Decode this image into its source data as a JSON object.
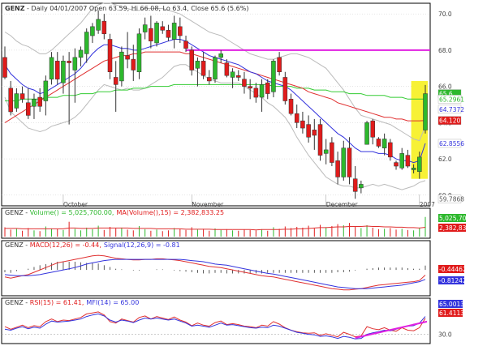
{
  "colors": {
    "up": "#2db82d",
    "down": "#e01b1b",
    "ma_blue": "#3333dd",
    "ma_red": "#e03030",
    "ma_green": "#33cc33",
    "bollinger": "#bbbbbb",
    "resistance": "#e020e0",
    "highlight": "#f7f02a",
    "frame": "#000000",
    "grid": "#cccccc"
  },
  "header": {
    "symbol": "GENZ",
    "title": "- Daily 04/01/2007 Open 63.59, Hi 66.08, Lo 63.4, Close 65.6 (5.6%)"
  },
  "price_panel": {
    "ylim": [
      59.5,
      70.5
    ],
    "ticks": [
      "70.0",
      "68.0",
      "66.0",
      "64.0",
      "62.0",
      "60.0"
    ],
    "x_labels": [
      "October",
      "November",
      "December",
      "2007"
    ],
    "badges": [
      {
        "text": "65.6",
        "value": 65.6,
        "bg": "#2db82d",
        "fg": "#ffffff"
      },
      {
        "text": "65.2961",
        "value": 65.2961,
        "bg": "#ffffff",
        "fg": "#2db82d"
      },
      {
        "text": "64.7372",
        "value": 64.7372,
        "bg": "#ffffff",
        "fg": "#3333dd"
      },
      {
        "text": "64.1207",
        "value": 64.1207,
        "bg": "#e01b1b",
        "fg": "#ffffff"
      },
      {
        "text": "62.8556",
        "value": 62.8556,
        "bg": "#ffffff",
        "fg": "#3333dd"
      },
      {
        "text": "59.7868",
        "value": 59.7868,
        "bg": "#ffffff",
        "fg": "#555555"
      }
    ],
    "resistance_level": 68.0
  },
  "volume_panel": {
    "label_prefix": "GENZ - ",
    "label_vol": "Volume() = 5,025,700.00,",
    "label_ma": "MA(Volume(),15) = 2,382,833.25",
    "badges": [
      {
        "text": "5,025,700",
        "bg": "#2db82d",
        "fg": "#ffffff"
      },
      {
        "text": "2,382,833",
        "bg": "#e01b1b",
        "fg": "#ffffff"
      }
    ]
  },
  "macd_panel": {
    "label_prefix": "GENZ - ",
    "label_macd": "MACD(12,26) = -0.44,",
    "label_signal": "Signal(12,26,9) = -0.81",
    "badges": [
      {
        "text": "-0.44462",
        "bg": "#e01b1b",
        "fg": "#ffffff"
      },
      {
        "text": "-0.81242",
        "bg": "#3333dd",
        "fg": "#ffffff"
      }
    ]
  },
  "rsi_panel": {
    "label_prefix": "GENZ - ",
    "label_rsi": "RSI(15) = 61.41,",
    "label_mfi": "MFI(14) = 65.00",
    "ticks": [
      "30.0"
    ],
    "badges": [
      {
        "text": "65.0013",
        "bg": "#3333dd",
        "fg": "#ffffff"
      },
      {
        "text": "61.4113",
        "bg": "#e01b1b",
        "fg": "#ffffff"
      }
    ]
  },
  "chart_data": {
    "type": "candlestick",
    "symbol": "GENZ",
    "title": "GENZ - Daily 04/01/2007 Open 63.59, Hi 66.08, Lo 63.4, Close 65.6 (5.6%)",
    "x_axis_labels": [
      "October",
      "November",
      "December",
      "2007"
    ],
    "ylim": [
      59.5,
      70.5
    ],
    "resistance": 68.0,
    "candles": [
      {
        "o": 67.6,
        "h": 68.2,
        "l": 66.4,
        "c": 66.5
      },
      {
        "o": 65.9,
        "h": 66.3,
        "l": 64.4,
        "c": 64.6
      },
      {
        "o": 64.8,
        "h": 65.9,
        "l": 64.6,
        "c": 65.6
      },
      {
        "o": 65.6,
        "h": 66.0,
        "l": 65.1,
        "c": 65.3
      },
      {
        "o": 65.1,
        "h": 65.9,
        "l": 64.2,
        "c": 64.4
      },
      {
        "o": 64.9,
        "h": 65.6,
        "l": 64.2,
        "c": 65.3
      },
      {
        "o": 65.4,
        "h": 65.9,
        "l": 64.6,
        "c": 64.9
      },
      {
        "o": 65.2,
        "h": 66.6,
        "l": 64.4,
        "c": 66.3
      },
      {
        "o": 66.4,
        "h": 67.9,
        "l": 66.1,
        "c": 67.6
      },
      {
        "o": 67.4,
        "h": 67.9,
        "l": 66.1,
        "c": 66.4
      },
      {
        "o": 66.2,
        "h": 67.7,
        "l": 65.6,
        "c": 67.4
      },
      {
        "o": 67.4,
        "h": 67.9,
        "l": 63.9,
        "c": 67.3
      },
      {
        "o": 66.9,
        "h": 68.1,
        "l": 65.1,
        "c": 67.6
      },
      {
        "o": 67.6,
        "h": 68.2,
        "l": 67.1,
        "c": 68.0
      },
      {
        "o": 67.8,
        "h": 69.2,
        "l": 67.3,
        "c": 69.0
      },
      {
        "o": 68.8,
        "h": 69.5,
        "l": 68.4,
        "c": 69.3
      },
      {
        "o": 69.1,
        "h": 70.2,
        "l": 68.9,
        "c": 69.7
      },
      {
        "o": 69.6,
        "h": 70.0,
        "l": 68.6,
        "c": 68.9
      },
      {
        "o": 68.6,
        "h": 68.9,
        "l": 66.4,
        "c": 66.8
      },
      {
        "o": 66.5,
        "h": 67.4,
        "l": 64.6,
        "c": 66.1
      },
      {
        "o": 66.3,
        "h": 68.2,
        "l": 66.0,
        "c": 67.9
      },
      {
        "o": 67.7,
        "h": 69.0,
        "l": 67.0,
        "c": 67.5
      },
      {
        "o": 67.5,
        "h": 68.3,
        "l": 66.3,
        "c": 66.9
      },
      {
        "o": 66.8,
        "h": 69.2,
        "l": 66.4,
        "c": 68.9
      },
      {
        "o": 69.0,
        "h": 69.8,
        "l": 68.6,
        "c": 69.4
      },
      {
        "o": 69.2,
        "h": 69.9,
        "l": 68.1,
        "c": 68.5
      },
      {
        "o": 68.4,
        "h": 69.6,
        "l": 68.2,
        "c": 69.5
      },
      {
        "o": 69.3,
        "h": 69.6,
        "l": 68.9,
        "c": 69.1
      },
      {
        "o": 69.1,
        "h": 69.4,
        "l": 68.5,
        "c": 68.7
      },
      {
        "o": 68.6,
        "h": 69.9,
        "l": 68.1,
        "c": 69.5
      },
      {
        "o": 69.3,
        "h": 69.8,
        "l": 68.4,
        "c": 68.8
      },
      {
        "o": 68.5,
        "h": 68.8,
        "l": 67.9,
        "c": 68.1
      },
      {
        "o": 68.0,
        "h": 68.2,
        "l": 66.6,
        "c": 66.9
      },
      {
        "o": 67.0,
        "h": 67.6,
        "l": 66.0,
        "c": 67.4
      },
      {
        "o": 67.4,
        "h": 67.9,
        "l": 66.4,
        "c": 66.6
      },
      {
        "o": 66.5,
        "h": 66.9,
        "l": 66.1,
        "c": 66.3
      },
      {
        "o": 66.4,
        "h": 67.7,
        "l": 66.2,
        "c": 67.6
      },
      {
        "o": 67.6,
        "h": 68.0,
        "l": 67.3,
        "c": 67.8
      },
      {
        "o": 67.3,
        "h": 67.5,
        "l": 66.5,
        "c": 66.6
      },
      {
        "o": 66.5,
        "h": 67.0,
        "l": 65.9,
        "c": 66.8
      },
      {
        "o": 66.6,
        "h": 66.9,
        "l": 66.3,
        "c": 66.5
      },
      {
        "o": 66.4,
        "h": 66.8,
        "l": 65.6,
        "c": 66.0
      },
      {
        "o": 66.0,
        "h": 66.4,
        "l": 65.3,
        "c": 65.9
      },
      {
        "o": 65.9,
        "h": 66.2,
        "l": 65.1,
        "c": 65.4
      },
      {
        "o": 65.4,
        "h": 66.4,
        "l": 64.6,
        "c": 66.1
      },
      {
        "o": 66.2,
        "h": 66.4,
        "l": 65.3,
        "c": 65.6
      },
      {
        "o": 65.7,
        "h": 67.5,
        "l": 65.4,
        "c": 67.4
      },
      {
        "o": 67.6,
        "h": 67.9,
        "l": 66.6,
        "c": 66.8
      },
      {
        "o": 66.5,
        "h": 66.8,
        "l": 65.0,
        "c": 65.2
      },
      {
        "o": 65.3,
        "h": 65.6,
        "l": 64.4,
        "c": 64.5
      },
      {
        "o": 64.5,
        "h": 65.0,
        "l": 63.7,
        "c": 64.0
      },
      {
        "o": 64.1,
        "h": 64.6,
        "l": 63.4,
        "c": 63.7
      },
      {
        "o": 63.9,
        "h": 64.4,
        "l": 62.9,
        "c": 63.2
      },
      {
        "o": 63.6,
        "h": 64.2,
        "l": 62.5,
        "c": 63.3
      },
      {
        "o": 63.9,
        "h": 64.2,
        "l": 61.9,
        "c": 62.2
      },
      {
        "o": 62.3,
        "h": 63.1,
        "l": 61.7,
        "c": 62.5
      },
      {
        "o": 62.9,
        "h": 63.2,
        "l": 61.6,
        "c": 61.8
      },
      {
        "o": 61.9,
        "h": 62.4,
        "l": 60.6,
        "c": 61.0
      },
      {
        "o": 61.0,
        "h": 63.0,
        "l": 60.8,
        "c": 62.6
      },
      {
        "o": 62.6,
        "h": 63.2,
        "l": 60.6,
        "c": 61.0
      },
      {
        "o": 60.9,
        "h": 61.6,
        "l": 59.8,
        "c": 60.2
      },
      {
        "o": 60.4,
        "h": 60.8,
        "l": 60.1,
        "c": 60.6
      },
      {
        "o": 62.8,
        "h": 64.1,
        "l": 62.8,
        "c": 64.0
      },
      {
        "o": 64.1,
        "h": 64.2,
        "l": 62.8,
        "c": 63.2
      },
      {
        "o": 63.1,
        "h": 63.2,
        "l": 62.6,
        "c": 62.7
      },
      {
        "o": 62.6,
        "h": 63.4,
        "l": 62.2,
        "c": 63.1
      },
      {
        "o": 62.9,
        "h": 63.1,
        "l": 61.9,
        "c": 62.1
      },
      {
        "o": 61.8,
        "h": 61.9,
        "l": 61.4,
        "c": 61.6
      },
      {
        "o": 61.5,
        "h": 62.6,
        "l": 61.4,
        "c": 62.3
      },
      {
        "o": 62.2,
        "h": 62.5,
        "l": 61.5,
        "c": 61.6
      },
      {
        "o": 61.4,
        "h": 61.7,
        "l": 61.2,
        "c": 61.5
      },
      {
        "o": 61.3,
        "h": 62.4,
        "l": 60.9,
        "c": 62.1
      },
      {
        "o": 63.59,
        "h": 66.08,
        "l": 63.4,
        "c": 65.6
      }
    ],
    "ma_blue": [
      67.2,
      66.7,
      66.4,
      66.1,
      65.9,
      65.8,
      65.6,
      65.7,
      65.9,
      66.1,
      66.3,
      66.5,
      66.7,
      67.0,
      67.4,
      67.8,
      68.1,
      68.3,
      68.3,
      68.2,
      68.1,
      68.1,
      68.0,
      68.0,
      68.1,
      68.2,
      68.3,
      68.4,
      68.5,
      68.6,
      68.6,
      68.5,
      68.3,
      68.1,
      67.9,
      67.7,
      67.6,
      67.5,
      67.4,
      67.3,
      67.2,
      67.0,
      66.8,
      66.7,
      66.5,
      66.3,
      66.2,
      66.1,
      66.0,
      65.8,
      65.5,
      65.2,
      64.9,
      64.6,
      64.3,
      64.0,
      63.7,
      63.4,
      63.2,
      62.9,
      62.6,
      62.4,
      62.4,
      62.4,
      62.3,
      62.3,
      62.2,
      62.0,
      61.9,
      61.9,
      61.8,
      61.9,
      62.86
    ],
    "ma_red": [
      64.0,
      64.2,
      64.4,
      64.6,
      64.8,
      65.0,
      65.2,
      65.4,
      65.6,
      65.8,
      66.0,
      66.2,
      66.4,
      66.6,
      66.8,
      67.0,
      67.2,
      67.4,
      67.5,
      67.6,
      67.7,
      67.7,
      67.8,
      67.8,
      67.9,
      67.9,
      67.9,
      67.9,
      67.9,
      67.9,
      67.9,
      67.8,
      67.8,
      67.7,
      67.6,
      67.5,
      67.4,
      67.3,
      67.2,
      67.1,
      67.0,
      66.9,
      66.8,
      66.7,
      66.6,
      66.5,
      66.4,
      66.3,
      66.2,
      66.1,
      66.0,
      65.9,
      65.7,
      65.6,
      65.5,
      65.4,
      65.3,
      65.1,
      65.0,
      64.9,
      64.8,
      64.7,
      64.6,
      64.5,
      64.4,
      64.3,
      64.3,
      64.2,
      64.2,
      64.1,
      64.1,
      64.1,
      64.12
    ],
    "ma_green": [
      65.2,
      65.2,
      65.2,
      65.3,
      65.3,
      65.3,
      65.3,
      65.4,
      65.4,
      65.4,
      65.5,
      65.5,
      65.5,
      65.6,
      65.6,
      65.6,
      65.7,
      65.7,
      65.7,
      65.8,
      65.8,
      65.8,
      65.9,
      65.9,
      65.9,
      66.0,
      66.0,
      66.0,
      66.0,
      66.1,
      66.1,
      66.1,
      66.1,
      66.1,
      66.1,
      66.1,
      66.1,
      66.1,
      66.1,
      66.1,
      66.1,
      66.1,
      66.1,
      66.1,
      66.1,
      66.1,
      66.0,
      66.0,
      66.0,
      66.0,
      65.9,
      65.9,
      65.9,
      65.8,
      65.8,
      65.8,
      65.7,
      65.7,
      65.7,
      65.6,
      65.6,
      65.6,
      65.5,
      65.5,
      65.5,
      65.5,
      65.4,
      65.4,
      65.4,
      65.3,
      65.3,
      65.3,
      65.3
    ],
    "boll_upper": [
      69.0,
      68.8,
      68.5,
      68.3,
      68.2,
      68.0,
      67.8,
      67.8,
      68.0,
      68.3,
      68.6,
      68.9,
      69.2,
      69.5,
      69.9,
      70.3,
      70.5,
      70.6,
      70.6,
      70.5,
      70.4,
      70.3,
      70.2,
      70.2,
      70.3,
      70.3,
      70.3,
      70.3,
      70.2,
      70.1,
      70.0,
      69.8,
      69.6,
      69.4,
      69.2,
      69.0,
      68.9,
      68.8,
      68.6,
      68.4,
      68.2,
      68.0,
      67.8,
      67.7,
      67.6,
      67.5,
      67.5,
      67.6,
      67.7,
      67.8,
      67.8,
      67.7,
      67.6,
      67.4,
      67.2,
      67.0,
      66.6,
      66.2,
      65.8,
      65.3,
      64.8,
      64.4,
      64.3,
      64.2,
      64.1,
      64.0,
      63.9,
      63.7,
      63.5,
      63.3,
      63.1,
      63.0,
      63.8
    ],
    "boll_lower": [
      65.4,
      64.6,
      64.3,
      64.0,
      63.7,
      63.6,
      63.5,
      63.6,
      63.8,
      63.9,
      64.0,
      64.1,
      64.3,
      64.6,
      65.0,
      65.4,
      65.8,
      66.1,
      66.0,
      65.9,
      65.8,
      65.9,
      65.8,
      65.8,
      65.9,
      66.1,
      66.3,
      66.5,
      66.8,
      67.1,
      67.2,
      67.2,
      67.0,
      66.8,
      66.6,
      66.4,
      66.3,
      66.2,
      66.2,
      66.2,
      66.2,
      66.0,
      65.8,
      65.6,
      65.4,
      65.1,
      64.9,
      64.6,
      64.3,
      63.8,
      63.2,
      62.7,
      62.2,
      61.8,
      61.4,
      61.0,
      60.8,
      60.6,
      60.5,
      60.5,
      60.4,
      60.4,
      60.5,
      60.6,
      60.5,
      60.6,
      60.5,
      60.4,
      60.3,
      60.4,
      60.5,
      60.7,
      60.8
    ],
    "volume": [
      2.4,
      1.8,
      2.0,
      1.5,
      2.2,
      1.6,
      1.4,
      2.6,
      2.1,
      1.9,
      1.7,
      3.8,
      2.0,
      1.6,
      2.3,
      1.9,
      2.8,
      1.7,
      2.5,
      2.1,
      2.3,
      1.8,
      1.6,
      2.7,
      1.9,
      1.5,
      1.8,
      1.4,
      1.6,
      2.2,
      1.9,
      1.7,
      2.4,
      1.8,
      2.0,
      1.5,
      2.1,
      1.7,
      1.9,
      1.6,
      1.5,
      1.8,
      1.7,
      1.6,
      1.9,
      1.5,
      2.4,
      2.0,
      2.6,
      2.2,
      2.5,
      2.3,
      2.8,
      2.1,
      3.0,
      2.4,
      2.7,
      3.2,
      2.9,
      3.5,
      2.6,
      2.2,
      2.9,
      2.3,
      1.9,
      2.0,
      2.2,
      1.8,
      2.0,
      1.7,
      1.6,
      2.3,
      5.03
    ],
    "volume_ma": [
      2.1,
      2.1,
      2.1,
      2.0,
      2.0,
      2.0,
      2.0,
      2.0,
      2.0,
      2.0,
      2.0,
      2.2,
      2.2,
      2.1,
      2.1,
      2.1,
      2.2,
      2.2,
      2.2,
      2.2,
      2.2,
      2.2,
      2.1,
      2.1,
      2.1,
      2.1,
      2.0,
      2.0,
      2.0,
      2.0,
      2.0,
      1.9,
      1.9,
      1.9,
      1.9,
      1.9,
      1.8,
      1.8,
      1.8,
      1.8,
      1.8,
      1.8,
      1.8,
      1.7,
      1.8,
      1.8,
      1.8,
      1.8,
      1.9,
      1.9,
      2.0,
      2.0,
      2.1,
      2.2,
      2.3,
      2.3,
      2.4,
      2.5,
      2.5,
      2.6,
      2.6,
      2.6,
      2.7,
      2.6,
      2.6,
      2.5,
      2.5,
      2.4,
      2.4,
      2.3,
      2.3,
      2.2,
      2.38
    ],
    "macd": [
      -0.6,
      -0.7,
      -0.6,
      -0.5,
      -0.4,
      -0.2,
      0.0,
      0.2,
      0.4,
      0.6,
      0.7,
      0.8,
      0.9,
      1.0,
      1.1,
      1.2,
      1.25,
      1.2,
      1.1,
      1.0,
      0.95,
      0.9,
      0.85,
      0.85,
      0.9,
      0.9,
      0.95,
      0.95,
      0.9,
      0.85,
      0.8,
      0.7,
      0.6,
      0.5,
      0.4,
      0.3,
      0.25,
      0.2,
      0.1,
      0.0,
      -0.1,
      -0.2,
      -0.3,
      -0.4,
      -0.5,
      -0.55,
      -0.6,
      -0.7,
      -0.8,
      -0.9,
      -1.0,
      -1.1,
      -1.2,
      -1.3,
      -1.4,
      -1.5,
      -1.6,
      -1.65,
      -1.7,
      -1.7,
      -1.65,
      -1.6,
      -1.5,
      -1.4,
      -1.3,
      -1.25,
      -1.2,
      -1.15,
      -1.1,
      -1.05,
      -1.0,
      -0.9,
      -0.44
    ],
    "macd_signal": [
      -0.4,
      -0.45,
      -0.5,
      -0.5,
      -0.5,
      -0.45,
      -0.4,
      -0.3,
      -0.2,
      -0.1,
      0.0,
      0.1,
      0.2,
      0.35,
      0.5,
      0.6,
      0.7,
      0.8,
      0.85,
      0.9,
      0.9,
      0.9,
      0.9,
      0.9,
      0.9,
      0.9,
      0.9,
      0.9,
      0.9,
      0.9,
      0.9,
      0.85,
      0.8,
      0.75,
      0.7,
      0.6,
      0.5,
      0.45,
      0.4,
      0.3,
      0.2,
      0.1,
      0.0,
      -0.1,
      -0.2,
      -0.3,
      -0.35,
      -0.45,
      -0.55,
      -0.65,
      -0.75,
      -0.85,
      -0.95,
      -1.05,
      -1.15,
      -1.25,
      -1.35,
      -1.45,
      -1.5,
      -1.55,
      -1.6,
      -1.6,
      -1.6,
      -1.55,
      -1.5,
      -1.45,
      -1.4,
      -1.35,
      -1.3,
      -1.2,
      -1.1,
      -1.0,
      -0.81
    ],
    "macd_hist": [
      -0.2,
      -0.25,
      -0.1,
      0.0,
      0.1,
      0.25,
      0.4,
      0.5,
      0.6,
      0.7,
      0.7,
      0.7,
      0.7,
      0.65,
      0.6,
      0.6,
      0.55,
      0.4,
      0.25,
      0.1,
      0.05,
      0.0,
      -0.05,
      -0.05,
      0.0,
      0.0,
      0.05,
      0.05,
      0.0,
      -0.05,
      -0.1,
      -0.15,
      -0.2,
      -0.25,
      -0.3,
      -0.3,
      -0.25,
      -0.25,
      -0.3,
      -0.3,
      -0.3,
      -0.3,
      -0.3,
      -0.3,
      -0.3,
      -0.25,
      -0.25,
      -0.25,
      -0.25,
      -0.25,
      -0.25,
      -0.25,
      -0.25,
      -0.25,
      -0.25,
      -0.25,
      -0.25,
      -0.2,
      -0.2,
      -0.15,
      -0.05,
      0.0,
      0.1,
      0.15,
      0.2,
      0.2,
      0.2,
      0.2,
      0.2,
      0.15,
      0.1,
      0.1,
      0.37
    ],
    "rsi": [
      45,
      40,
      44,
      48,
      43,
      47,
      45,
      55,
      60,
      55,
      58,
      57,
      60,
      63,
      70,
      72,
      74,
      68,
      55,
      52,
      60,
      57,
      54,
      63,
      66,
      60,
      65,
      62,
      59,
      64,
      58,
      54,
      47,
      52,
      48,
      46,
      53,
      56,
      49,
      51,
      49,
      46,
      45,
      43,
      48,
      46,
      55,
      50,
      43,
      38,
      35,
      33,
      32,
      33,
      28,
      31,
      28,
      25,
      34,
      30,
      25,
      27,
      45,
      41,
      39,
      43,
      38,
      36,
      43,
      38,
      37,
      43,
      61.4
    ],
    "mfi": [
      40,
      38,
      42,
      45,
      41,
      44,
      42,
      50,
      56,
      54,
      55,
      56,
      58,
      60,
      65,
      68,
      70,
      66,
      58,
      54,
      58,
      56,
      53,
      58,
      62,
      60,
      62,
      60,
      58,
      60,
      56,
      52,
      46,
      48,
      46,
      44,
      48,
      52,
      48,
      49,
      47,
      45,
      43,
      42,
      44,
      43,
      48,
      46,
      42,
      38,
      34,
      32,
      30,
      29,
      26,
      27,
      25,
      22,
      26,
      24,
      21,
      22,
      30,
      33,
      35,
      38,
      37,
      40,
      44,
      46,
      47,
      52,
      65.0
    ],
    "rsi_ylim": [
      15,
      85
    ],
    "rsi_level": 30
  }
}
